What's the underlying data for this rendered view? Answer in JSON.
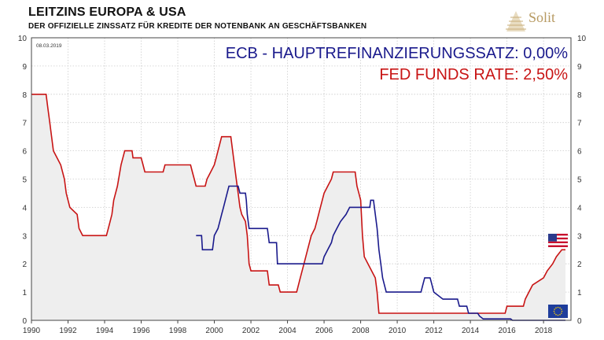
{
  "header": {
    "title": "LEITZINS EUROPA & USA",
    "subtitle": "DER OFFIZIELLE ZINSSATZ FÜR KREDITE DER NOTENBANK AN GESCHÄFTSBANKEN"
  },
  "logo": {
    "text": "Solit",
    "icon": "pyramid-icon",
    "color": "#b79a62"
  },
  "chart_data": {
    "type": "line",
    "date_label": "08.03.2019",
    "xlim": [
      1990,
      2019.5
    ],
    "ylim": [
      0,
      10
    ],
    "x_ticks": [
      "1990",
      "1992",
      "1994",
      "1996",
      "1998",
      "2000",
      "2002",
      "2004",
      "2006",
      "2008",
      "2010",
      "2012",
      "2014",
      "2016",
      "2018"
    ],
    "y_ticks": [
      "0",
      "1",
      "2",
      "3",
      "4",
      "5",
      "6",
      "7",
      "8",
      "9",
      "10"
    ],
    "grid": true,
    "annotations": [
      {
        "text": "ECB - HAUPTREFINANZIERUNGSSATZ: 0,00%",
        "color": "#1a1a8c"
      },
      {
        "text": "FED FUNDS RATE: 2,50%",
        "color": "#c81414"
      }
    ],
    "flags": [
      "usa-flag-icon",
      "eu-flag-icon"
    ],
    "series": [
      {
        "color": "#c81414",
        "fill": "#eeeeee",
        "points": [
          [
            1990,
            8
          ],
          [
            1990.8,
            8
          ],
          [
            1990.9,
            7.5
          ],
          [
            1991,
            7
          ],
          [
            1991.1,
            6.5
          ],
          [
            1991.2,
            6
          ],
          [
            1991.4,
            5.75
          ],
          [
            1991.6,
            5.5
          ],
          [
            1991.8,
            5
          ],
          [
            1991.9,
            4.5
          ],
          [
            1992.1,
            4
          ],
          [
            1992.5,
            3.75
          ],
          [
            1992.6,
            3.25
          ],
          [
            1992.8,
            3
          ],
          [
            1994.1,
            3
          ],
          [
            1994.2,
            3.25
          ],
          [
            1994.3,
            3.5
          ],
          [
            1994.4,
            3.75
          ],
          [
            1994.5,
            4.25
          ],
          [
            1994.7,
            4.75
          ],
          [
            1994.9,
            5.5
          ],
          [
            1995.1,
            6
          ],
          [
            1995.5,
            6
          ],
          [
            1995.55,
            5.75
          ],
          [
            1996,
            5.75
          ],
          [
            1996.1,
            5.5
          ],
          [
            1996.2,
            5.25
          ],
          [
            1997.2,
            5.25
          ],
          [
            1997.3,
            5.5
          ],
          [
            1998.7,
            5.5
          ],
          [
            1998.8,
            5.25
          ],
          [
            1998.9,
            5
          ],
          [
            1999,
            4.75
          ],
          [
            1999.5,
            4.75
          ],
          [
            1999.6,
            5
          ],
          [
            1999.8,
            5.25
          ],
          [
            2000,
            5.5
          ],
          [
            2000.1,
            5.75
          ],
          [
            2000.2,
            6
          ],
          [
            2000.4,
            6.5
          ],
          [
            2000.9,
            6.5
          ],
          [
            2001,
            6
          ],
          [
            2001.1,
            5.5
          ],
          [
            2001.2,
            5
          ],
          [
            2001.3,
            4.5
          ],
          [
            2001.4,
            4
          ],
          [
            2001.5,
            3.75
          ],
          [
            2001.7,
            3.5
          ],
          [
            2001.8,
            3
          ],
          [
            2001.85,
            2.5
          ],
          [
            2001.9,
            2
          ],
          [
            2002,
            1.75
          ],
          [
            2002.9,
            1.75
          ],
          [
            2003,
            1.25
          ],
          [
            2003.5,
            1.25
          ],
          [
            2003.6,
            1
          ],
          [
            2004.5,
            1
          ],
          [
            2004.6,
            1.25
          ],
          [
            2004.7,
            1.5
          ],
          [
            2004.9,
            2
          ],
          [
            2005.1,
            2.5
          ],
          [
            2005.3,
            3
          ],
          [
            2005.5,
            3.25
          ],
          [
            2005.6,
            3.5
          ],
          [
            2005.8,
            4
          ],
          [
            2006,
            4.5
          ],
          [
            2006.2,
            4.75
          ],
          [
            2006.4,
            5
          ],
          [
            2006.5,
            5.25
          ],
          [
            2007.7,
            5.25
          ],
          [
            2007.8,
            4.75
          ],
          [
            2007.9,
            4.5
          ],
          [
            2008,
            4.25
          ],
          [
            2008.1,
            3
          ],
          [
            2008.2,
            2.25
          ],
          [
            2008.4,
            2
          ],
          [
            2008.8,
            1.5
          ],
          [
            2008.9,
            1
          ],
          [
            2009,
            0.25
          ],
          [
            2015.9,
            0.25
          ],
          [
            2016,
            0.5
          ],
          [
            2016.9,
            0.5
          ],
          [
            2017,
            0.75
          ],
          [
            2017.2,
            1
          ],
          [
            2017.4,
            1.25
          ],
          [
            2018,
            1.5
          ],
          [
            2018.2,
            1.75
          ],
          [
            2018.5,
            2
          ],
          [
            2018.7,
            2.25
          ],
          [
            2019,
            2.5
          ],
          [
            2019.2,
            2.5
          ]
        ]
      },
      {
        "color": "#1a1a8c",
        "points": [
          [
            1999,
            3
          ],
          [
            1999.3,
            3
          ],
          [
            1999.35,
            2.5
          ],
          [
            1999.9,
            2.5
          ],
          [
            2000,
            3
          ],
          [
            2000.2,
            3.25
          ],
          [
            2000.3,
            3.5
          ],
          [
            2000.4,
            3.75
          ],
          [
            2000.5,
            4
          ],
          [
            2000.6,
            4.25
          ],
          [
            2000.7,
            4.5
          ],
          [
            2000.8,
            4.75
          ],
          [
            2001.3,
            4.75
          ],
          [
            2001.4,
            4.5
          ],
          [
            2001.7,
            4.5
          ],
          [
            2001.75,
            4.25
          ],
          [
            2001.8,
            3.75
          ],
          [
            2001.9,
            3.25
          ],
          [
            2002.9,
            3.25
          ],
          [
            2003,
            2.75
          ],
          [
            2003.4,
            2.75
          ],
          [
            2003.45,
            2
          ],
          [
            2005.9,
            2
          ],
          [
            2006,
            2.25
          ],
          [
            2006.2,
            2.5
          ],
          [
            2006.4,
            2.75
          ],
          [
            2006.5,
            3
          ],
          [
            2006.7,
            3.25
          ],
          [
            2006.9,
            3.5
          ],
          [
            2007.2,
            3.75
          ],
          [
            2007.4,
            4
          ],
          [
            2008.5,
            4
          ],
          [
            2008.55,
            4.25
          ],
          [
            2008.7,
            4.25
          ],
          [
            2008.8,
            3.75
          ],
          [
            2008.9,
            3.25
          ],
          [
            2009,
            2.5
          ],
          [
            2009.1,
            2
          ],
          [
            2009.2,
            1.5
          ],
          [
            2009.3,
            1.25
          ],
          [
            2009.4,
            1
          ],
          [
            2011.3,
            1
          ],
          [
            2011.4,
            1.25
          ],
          [
            2011.5,
            1.5
          ],
          [
            2011.8,
            1.5
          ],
          [
            2011.9,
            1.25
          ],
          [
            2012,
            1
          ],
          [
            2012.5,
            0.75
          ],
          [
            2013.3,
            0.75
          ],
          [
            2013.4,
            0.5
          ],
          [
            2013.8,
            0.5
          ],
          [
            2013.9,
            0.25
          ],
          [
            2014.4,
            0.25
          ],
          [
            2014.5,
            0.15
          ],
          [
            2014.7,
            0.05
          ],
          [
            2016.2,
            0.05
          ],
          [
            2016.3,
            0
          ],
          [
            2019.2,
            0
          ]
        ]
      }
    ]
  }
}
